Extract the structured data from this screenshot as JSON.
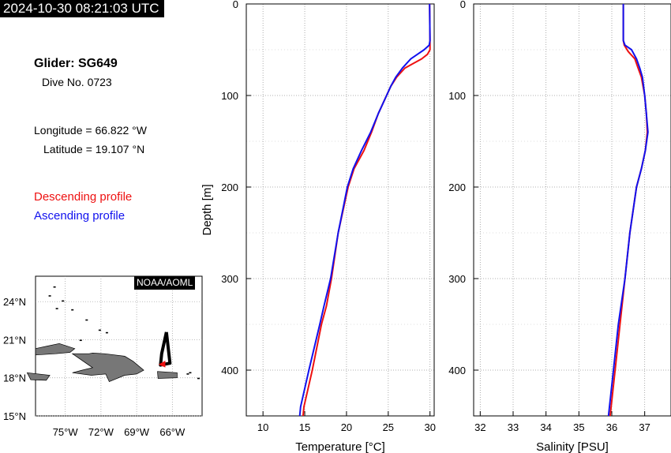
{
  "header": {
    "timestamp": "2024-10-30 08:21:03 UTC"
  },
  "info": {
    "glider": "Glider: SG649",
    "dive": "Dive No. 0723",
    "longitude": "Longitude = 66.822 °W",
    "latitude": "Latitude = 19.107 °N"
  },
  "legend": {
    "descending": "Descending profile",
    "ascending": "Ascending profile",
    "descending_color": "#ee1111",
    "ascending_color": "#1111ee"
  },
  "map": {
    "credit": "NOAA/AOML",
    "lon_ticks": [
      "75°W",
      "72°W",
      "69°W",
      "66°W"
    ],
    "lat_ticks": [
      "24°N",
      "21°N",
      "18°N",
      "15°N"
    ],
    "lon_values": [
      -75,
      -72,
      -69,
      -66
    ],
    "lat_values": [
      24,
      21,
      18,
      15
    ],
    "xlim": [
      -77.5,
      -63.5
    ],
    "ylim": [
      15,
      26
    ],
    "track": [
      [
        -66.5,
        21.6
      ],
      [
        -66.9,
        19.9
      ],
      [
        -67.0,
        19.0
      ],
      [
        -66.2,
        19.15
      ],
      [
        -66.5,
        21.6
      ]
    ],
    "position": [
      -66.82,
      19.11
    ]
  },
  "chart_data": [
    {
      "type": "line",
      "xlabel": "Temperature [°C]",
      "ylabel": "Depth [m]",
      "xlim": [
        8,
        30.5
      ],
      "ylim": [
        0,
        450
      ],
      "y_inverted": true,
      "x_ticks": [
        10,
        15,
        20,
        25,
        30
      ],
      "y_ticks": [
        0,
        100,
        200,
        300,
        400
      ],
      "grid": true,
      "series": [
        {
          "name": "Descending profile",
          "color": "#ee1111",
          "depth": [
            0,
            40,
            50,
            55,
            60,
            65,
            70,
            80,
            90,
            100,
            120,
            140,
            160,
            180,
            200,
            250,
            300,
            330,
            350,
            400,
            440,
            450
          ],
          "values": [
            29.95,
            30.0,
            30.0,
            29.7,
            29.0,
            28.0,
            27.0,
            26.0,
            25.3,
            24.8,
            23.8,
            23.0,
            22.1,
            20.9,
            20.2,
            19.0,
            18.2,
            17.6,
            17.0,
            15.9,
            14.9,
            14.8
          ]
        },
        {
          "name": "Ascending profile",
          "color": "#1111ee",
          "depth": [
            0,
            40,
            45,
            50,
            55,
            60,
            70,
            80,
            90,
            100,
            120,
            140,
            160,
            180,
            200,
            250,
            300,
            330,
            350,
            400,
            440,
            450
          ],
          "values": [
            29.95,
            30.0,
            29.9,
            29.3,
            28.5,
            27.7,
            26.7,
            25.9,
            25.3,
            24.8,
            23.8,
            22.9,
            21.8,
            20.8,
            20.1,
            19.0,
            18.1,
            17.3,
            16.8,
            15.5,
            14.5,
            14.4
          ]
        }
      ]
    },
    {
      "type": "line",
      "xlabel": "Salinity [PSU]",
      "ylabel": "",
      "xlim": [
        31.8,
        37.8
      ],
      "ylim": [
        0,
        450
      ],
      "y_inverted": true,
      "x_ticks": [
        32,
        33,
        34,
        35,
        36,
        37
      ],
      "y_ticks": [
        0,
        100,
        200,
        300,
        400
      ],
      "grid": true,
      "series": [
        {
          "name": "Descending profile",
          "color": "#ee1111",
          "depth": [
            0,
            40,
            45,
            52,
            60,
            70,
            80,
            100,
            120,
            140,
            160,
            180,
            200,
            250,
            300,
            350,
            400,
            450
          ],
          "values": [
            36.35,
            36.35,
            36.38,
            36.5,
            36.7,
            36.8,
            36.9,
            37.0,
            37.05,
            37.08,
            37.02,
            36.9,
            36.75,
            36.55,
            36.4,
            36.25,
            36.1,
            35.95
          ]
        },
        {
          "name": "Ascending profile",
          "color": "#1111ee",
          "depth": [
            0,
            40,
            45,
            50,
            60,
            70,
            80,
            100,
            120,
            140,
            160,
            180,
            200,
            250,
            300,
            350,
            400,
            450
          ],
          "values": [
            36.35,
            36.35,
            36.4,
            36.6,
            36.75,
            36.85,
            36.93,
            37.0,
            37.05,
            37.1,
            37.02,
            36.9,
            36.75,
            36.55,
            36.4,
            36.2,
            36.05,
            35.9
          ]
        }
      ]
    }
  ]
}
